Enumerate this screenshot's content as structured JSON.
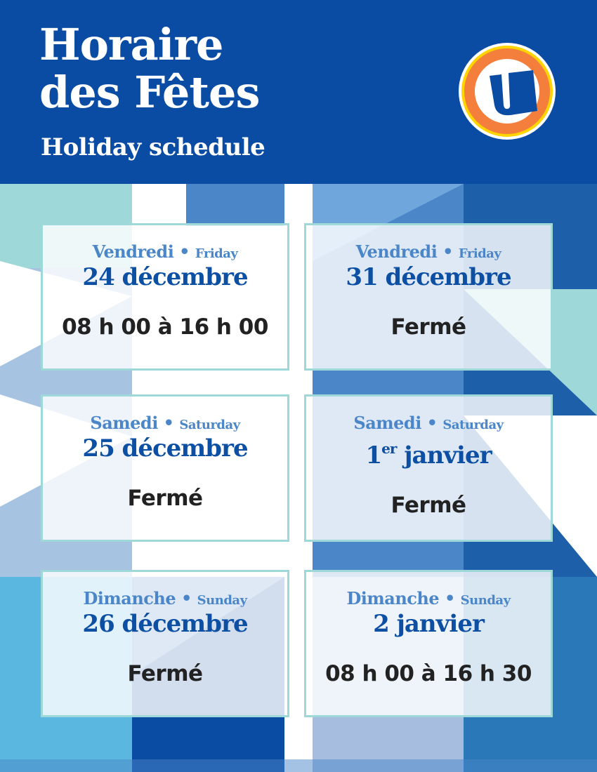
{
  "header": {
    "title_line1": "Horaire",
    "title_line2": "des Fêtes",
    "subtitle": "Holiday schedule",
    "logo_letter": "U"
  },
  "colors": {
    "header_blue": "#0a4ba3",
    "day_blue": "#4a86c8",
    "date_blue": "#0c4fa3",
    "card_border": "#9ed8d8",
    "logo_orange": "#f47f3c",
    "logo_yellow": "#ffd400"
  },
  "schedule": [
    {
      "day_fr": "Vendredi",
      "day_en": "Friday",
      "date": "24 décembre",
      "date_sup": "",
      "hours": "08 h 00 à 16 h 00"
    },
    {
      "day_fr": "Vendredi",
      "day_en": "Friday",
      "date": "31 décembre",
      "date_sup": "",
      "hours": "Fermé"
    },
    {
      "day_fr": "Samedi",
      "day_en": "Saturday",
      "date": "25 décembre",
      "date_sup": "",
      "hours": "Fermé"
    },
    {
      "day_fr": "Samedi",
      "day_en": "Saturday",
      "date_num": "1",
      "date_sup": "er",
      "date": " janvier",
      "hours": "Fermé"
    },
    {
      "day_fr": "Dimanche",
      "day_en": "Sunday",
      "date": "26 décembre",
      "date_sup": "",
      "hours": "Fermé"
    },
    {
      "day_fr": "Dimanche",
      "day_en": "Sunday",
      "date": "2 janvier",
      "date_sup": "",
      "hours": "08 h 00 à 16 h 30"
    }
  ]
}
